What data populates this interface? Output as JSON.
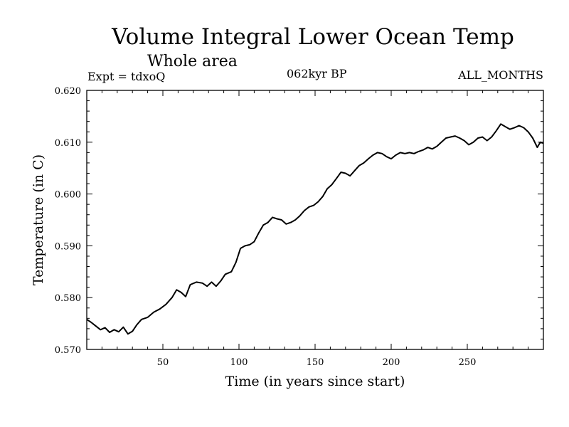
{
  "header": {
    "title": "Volume Integral Lower Ocean Temp",
    "subtitle": "Whole area",
    "expt": "Expt = tdxoQ",
    "period": "062kyr BP",
    "months": "ALL_MONTHS"
  },
  "chart_data": {
    "type": "line",
    "xlabel": "Time (in years since start)",
    "ylabel": "Temperature (in C)",
    "xlim": [
      0,
      300
    ],
    "ylim": [
      0.57,
      0.62
    ],
    "xticks": [
      50,
      100,
      150,
      200,
      250
    ],
    "yticks": [
      0.57,
      0.58,
      0.59,
      0.6,
      0.61,
      0.62
    ],
    "ytick_labels": [
      "0.570",
      "0.580",
      "0.590",
      "0.600",
      "0.610",
      "0.620"
    ],
    "grid": false,
    "series": [
      {
        "color": "#000000",
        "points": [
          [
            0,
            0.5758
          ],
          [
            3,
            0.5752
          ],
          [
            6,
            0.5745
          ],
          [
            9,
            0.5738
          ],
          [
            12,
            0.5742
          ],
          [
            15,
            0.5733
          ],
          [
            18,
            0.5738
          ],
          [
            21,
            0.5734
          ],
          [
            24,
            0.5743
          ],
          [
            27,
            0.573
          ],
          [
            30,
            0.5735
          ],
          [
            33,
            0.5748
          ],
          [
            36,
            0.5758
          ],
          [
            40,
            0.5762
          ],
          [
            44,
            0.5772
          ],
          [
            48,
            0.5778
          ],
          [
            52,
            0.5787
          ],
          [
            56,
            0.58
          ],
          [
            59,
            0.5815
          ],
          [
            62,
            0.581
          ],
          [
            65,
            0.5802
          ],
          [
            68,
            0.5825
          ],
          [
            72,
            0.583
          ],
          [
            76,
            0.5828
          ],
          [
            79,
            0.5822
          ],
          [
            82,
            0.583
          ],
          [
            85,
            0.5822
          ],
          [
            88,
            0.5832
          ],
          [
            91,
            0.5845
          ],
          [
            95,
            0.585
          ],
          [
            98,
            0.5868
          ],
          [
            101,
            0.5895
          ],
          [
            104,
            0.59
          ],
          [
            107,
            0.5902
          ],
          [
            110,
            0.5908
          ],
          [
            113,
            0.5925
          ],
          [
            116,
            0.594
          ],
          [
            119,
            0.5945
          ],
          [
            122,
            0.5955
          ],
          [
            125,
            0.5952
          ],
          [
            128,
            0.595
          ],
          [
            131,
            0.5942
          ],
          [
            134,
            0.5945
          ],
          [
            137,
            0.595
          ],
          [
            140,
            0.5958
          ],
          [
            143,
            0.5968
          ],
          [
            146,
            0.5975
          ],
          [
            149,
            0.5978
          ],
          [
            152,
            0.5985
          ],
          [
            155,
            0.5995
          ],
          [
            158,
            0.601
          ],
          [
            161,
            0.6018
          ],
          [
            164,
            0.603
          ],
          [
            167,
            0.6042
          ],
          [
            170,
            0.604
          ],
          [
            173,
            0.6035
          ],
          [
            176,
            0.6045
          ],
          [
            179,
            0.6055
          ],
          [
            182,
            0.606
          ],
          [
            185,
            0.6068
          ],
          [
            188,
            0.6075
          ],
          [
            191,
            0.608
          ],
          [
            194,
            0.6078
          ],
          [
            197,
            0.6072
          ],
          [
            200,
            0.6068
          ],
          [
            203,
            0.6075
          ],
          [
            206,
            0.608
          ],
          [
            209,
            0.6078
          ],
          [
            212,
            0.608
          ],
          [
            215,
            0.6078
          ],
          [
            218,
            0.6082
          ],
          [
            221,
            0.6085
          ],
          [
            224,
            0.609
          ],
          [
            227,
            0.6087
          ],
          [
            230,
            0.6092
          ],
          [
            233,
            0.61
          ],
          [
            236,
            0.6108
          ],
          [
            239,
            0.611
          ],
          [
            242,
            0.6112
          ],
          [
            245,
            0.6108
          ],
          [
            248,
            0.6103
          ],
          [
            251,
            0.6095
          ],
          [
            254,
            0.61
          ],
          [
            257,
            0.6108
          ],
          [
            260,
            0.611
          ],
          [
            263,
            0.6103
          ],
          [
            266,
            0.611
          ],
          [
            269,
            0.6122
          ],
          [
            272,
            0.6135
          ],
          [
            275,
            0.613
          ],
          [
            278,
            0.6125
          ],
          [
            281,
            0.6128
          ],
          [
            284,
            0.6132
          ],
          [
            287,
            0.6128
          ],
          [
            290,
            0.612
          ],
          [
            293,
            0.6108
          ],
          [
            296,
            0.609
          ],
          [
            298,
            0.61
          ],
          [
            300,
            0.6098
          ]
        ]
      }
    ]
  }
}
